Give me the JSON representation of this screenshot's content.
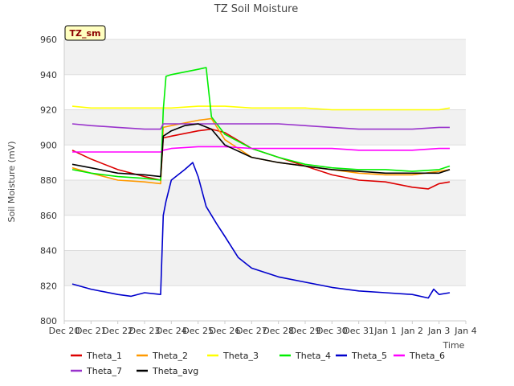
{
  "chart_data": {
    "type": "line",
    "title": "TZ Soil Moisture",
    "xlabel": "Time",
    "ylabel": "Soil Moisture (mV)",
    "badge": "TZ_sm",
    "ylim": [
      800,
      960
    ],
    "yticks": [
      800,
      820,
      840,
      860,
      880,
      900,
      920,
      940,
      960
    ],
    "xlim": [
      0,
      15
    ],
    "xticks": [
      {
        "pos": 0,
        "label": "Dec 20"
      },
      {
        "pos": 1,
        "label": "Dec 21"
      },
      {
        "pos": 2,
        "label": "Dec 22"
      },
      {
        "pos": 3,
        "label": "Dec 23"
      },
      {
        "pos": 4,
        "label": "Dec 24"
      },
      {
        "pos": 5,
        "label": "Dec 25"
      },
      {
        "pos": 6,
        "label": "Dec 26"
      },
      {
        "pos": 7,
        "label": "Dec 27"
      },
      {
        "pos": 8,
        "label": "Dec 28"
      },
      {
        "pos": 9,
        "label": "Dec 29"
      },
      {
        "pos": 10,
        "label": "Dec 30"
      },
      {
        "pos": 11,
        "label": "Dec 31"
      },
      {
        "pos": 12,
        "label": "Jan 1"
      },
      {
        "pos": 13,
        "label": "Jan 2"
      },
      {
        "pos": 14,
        "label": "Jan 3"
      },
      {
        "pos": 15,
        "label": "Jan 4"
      }
    ],
    "legend_position": "bottom",
    "series": [
      {
        "name": "Theta_1",
        "color": "#dd0000",
        "x": [
          0.3,
          1.0,
          2.0,
          3.0,
          3.6,
          3.7,
          4.0,
          5.0,
          5.5,
          6.0,
          7.0,
          8.0,
          9.0,
          10.0,
          11.0,
          12.0,
          13.0,
          13.6,
          14.0,
          14.4
        ],
        "y": [
          897,
          892,
          886,
          882,
          880,
          904,
          905,
          908,
          909,
          907,
          898,
          893,
          888,
          883,
          880,
          879,
          876,
          875,
          878,
          879
        ]
      },
      {
        "name": "Theta_2",
        "color": "#ff9900",
        "x": [
          0.3,
          1.0,
          2.0,
          3.0,
          3.6,
          3.7,
          4.0,
          5.0,
          5.5,
          6.0,
          7.0,
          8.0,
          9.0,
          10.0,
          11.0,
          12.0,
          13.0,
          14.0,
          14.4
        ],
        "y": [
          887,
          884,
          880,
          879,
          878,
          910,
          911,
          914,
          915,
          903,
          893,
          890,
          888,
          886,
          884,
          883,
          883,
          885,
          886
        ]
      },
      {
        "name": "Theta_3",
        "color": "#ffff00",
        "x": [
          0.3,
          1.0,
          2.0,
          3.0,
          4.0,
          5.0,
          6.0,
          7.0,
          8.0,
          9.0,
          10.0,
          11.0,
          12.0,
          13.0,
          14.0,
          14.4
        ],
        "y": [
          922,
          921,
          921,
          921,
          921,
          922,
          922,
          921,
          921,
          921,
          920,
          920,
          920,
          920,
          920,
          921
        ]
      },
      {
        "name": "Theta_4",
        "color": "#00ee00",
        "x": [
          0.3,
          1.0,
          2.0,
          3.0,
          3.6,
          3.7,
          3.8,
          4.0,
          5.0,
          5.3,
          5.4,
          5.5,
          6.0,
          7.0,
          8.0,
          9.0,
          10.0,
          11.0,
          12.0,
          13.0,
          14.0,
          14.4
        ],
        "y": [
          886,
          884,
          882,
          881,
          880,
          920,
          939,
          940,
          943,
          944,
          930,
          916,
          906,
          898,
          893,
          889,
          887,
          886,
          886,
          885,
          886,
          888
        ]
      },
      {
        "name": "Theta_5",
        "color": "#0000cc",
        "x": [
          0.3,
          1.0,
          2.0,
          2.5,
          3.0,
          3.6,
          3.7,
          3.8,
          4.0,
          4.5,
          4.8,
          5.0,
          5.3,
          5.7,
          6.0,
          6.5,
          7.0,
          8.0,
          9.0,
          10.0,
          11.0,
          12.0,
          13.0,
          13.6,
          13.8,
          14.0,
          14.4
        ],
        "y": [
          821,
          818,
          815,
          814,
          816,
          815,
          860,
          868,
          880,
          886,
          890,
          882,
          865,
          855,
          848,
          836,
          830,
          825,
          822,
          819,
          817,
          816,
          815,
          813,
          818,
          815,
          816
        ]
      },
      {
        "name": "Theta_6",
        "color": "#ff00ff",
        "x": [
          0.3,
          1.0,
          2.0,
          3.0,
          3.6,
          3.7,
          4.0,
          5.0,
          6.0,
          7.0,
          8.0,
          9.0,
          10.0,
          11.0,
          12.0,
          13.0,
          14.0,
          14.4
        ],
        "y": [
          896,
          896,
          896,
          896,
          896,
          897,
          898,
          899,
          899,
          898,
          898,
          898,
          898,
          897,
          897,
          897,
          898,
          898
        ]
      },
      {
        "name": "Theta_7",
        "color": "#9933cc",
        "x": [
          0.3,
          1.0,
          2.0,
          3.0,
          3.6,
          3.7,
          4.0,
          5.0,
          6.0,
          7.0,
          8.0,
          9.0,
          10.0,
          11.0,
          12.0,
          13.0,
          14.0,
          14.4
        ],
        "y": [
          912,
          911,
          910,
          909,
          909,
          912,
          912,
          912,
          912,
          912,
          912,
          911,
          910,
          909,
          909,
          909,
          910,
          910
        ]
      },
      {
        "name": "Theta_avg",
        "color": "#000000",
        "x": [
          0.3,
          1.0,
          2.0,
          3.0,
          3.6,
          3.7,
          4.0,
          4.5,
          5.0,
          5.5,
          6.0,
          7.0,
          8.0,
          9.0,
          10.0,
          11.0,
          12.0,
          13.0,
          14.0,
          14.4
        ],
        "y": [
          889,
          887,
          884,
          883,
          882,
          905,
          908,
          911,
          912,
          909,
          900,
          893,
          890,
          888,
          886,
          885,
          884,
          884,
          884,
          886
        ]
      }
    ]
  }
}
